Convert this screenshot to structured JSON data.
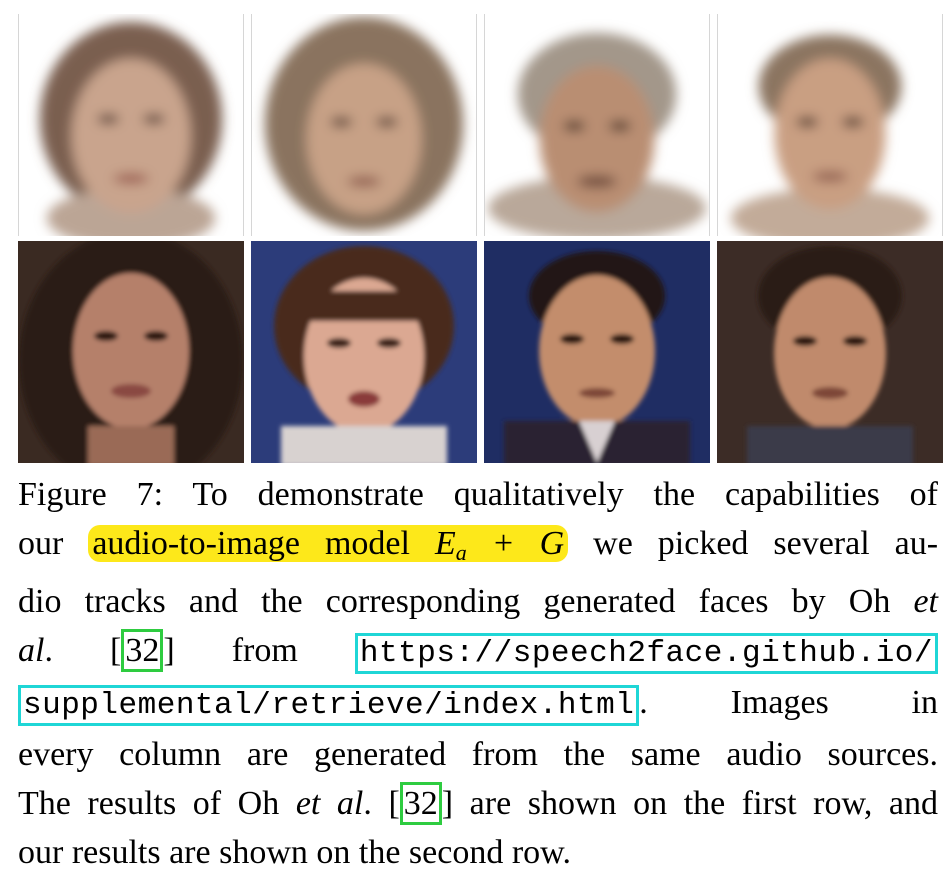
{
  "figure": {
    "label": "Figure 7:",
    "rows": [
      {
        "row": "oh_et_al",
        "cells": [
          {
            "name": "oh-face-1",
            "skin": "#c9a48d",
            "hair": "#7a5f50",
            "bg": "#ffffff"
          },
          {
            "name": "oh-face-2",
            "skin": "#c7a186",
            "hair": "#8a735f",
            "bg": "#ffffff"
          },
          {
            "name": "oh-face-3",
            "skin": "#b98e72",
            "hair": "#a3978a",
            "bg": "#ffffff"
          },
          {
            "name": "oh-face-4",
            "skin": "#c99f82",
            "hair": "#8b7460",
            "bg": "#ffffff"
          }
        ]
      },
      {
        "row": "ours",
        "cells": [
          {
            "name": "our-face-1",
            "skin": "#b5806a",
            "hair": "#2a1c16",
            "bg": "#3a2a22"
          },
          {
            "name": "our-face-2",
            "skin": "#dba892",
            "hair": "#4a2c1e",
            "bg": "#2c3c7a"
          },
          {
            "name": "our-face-3",
            "skin": "#c38d6c",
            "hair": "#231712",
            "bg": "#1f2d63"
          },
          {
            "name": "our-face-4",
            "skin": "#c08a6c",
            "hair": "#2a1a12",
            "bg": "#3c2c26"
          }
        ]
      }
    ]
  },
  "caption": {
    "l1": "To demonstrate qualitatively the capabilities of",
    "l2a": "our",
    "l2_hl": "audio-to-image model",
    "l2_math_E": "E",
    "l2_math_sub": "a",
    "l2_math_rest": "+ G",
    "l2b": "we picked several au-",
    "l3a": "dio tracks and the corresponding generated faces by Oh",
    "l3_it": "et",
    "l4_it": "al",
    "l4a": ". [",
    "cite": "32",
    "l4b": "] from",
    "url1": "https://speech2face.github.io/",
    "url2": "supplemental/retrieve/index.html",
    "l5b": ". Images in",
    "l6": "every column are generated from the same audio sources.",
    "l7a": "The results of Oh",
    "l7_it": "et al",
    "l7b": ". [",
    "cite2": "32",
    "l7c": "] are shown on the first row, and",
    "l8": "our results are shown on the second row."
  }
}
